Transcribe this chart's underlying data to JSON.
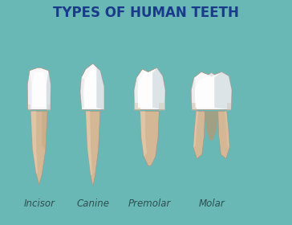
{
  "title": "TYPES OF HUMAN TEETH",
  "title_color": "#1a3a8a",
  "bg_color": "#6ab8b5",
  "label_color": "#2a5050",
  "labels": [
    "Incisor",
    "Canine",
    "Premolar",
    "Molar"
  ],
  "crown_white": "#f8f8f8",
  "crown_bright": "#ffffff",
  "crown_shadow": "#c8d4dc",
  "crown_edge": "#b0bec8",
  "root_main": "#d4b896",
  "root_light": "#e8d0b4",
  "root_dark": "#b89870",
  "outline": "#a89080",
  "label_fontsize": 8.5,
  "title_fontsize": 12
}
